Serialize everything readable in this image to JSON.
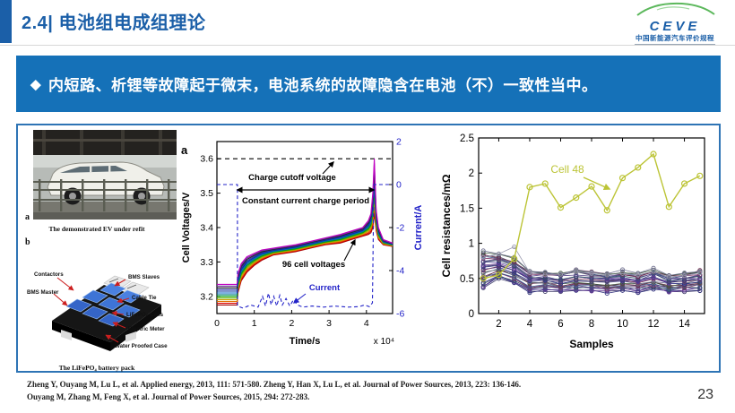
{
  "header": {
    "title": "2.4| 电池组电成组理论",
    "logo": {
      "name": "CEVE",
      "subtitle_zh": "中国新能源汽车评价规程"
    }
  },
  "banner": {
    "bullet": "◆",
    "text": "内短路、析锂等故障起于微末，电池系统的故障隐含在电池（不）一致性当中。"
  },
  "colors": {
    "accent_blue": "#1b5fa8",
    "banner_blue": "#1571b8",
    "box_border_blue": "#2e74b5",
    "current_blue": "#2323c8",
    "cell48_olive": "#bcc436",
    "arrow_red": "#cc1f1f",
    "logo_green": "#5cb85c"
  },
  "figures": {
    "ev": {
      "label": "a",
      "caption": "The demonstrated EV under refit"
    },
    "pack": {
      "label": "b",
      "caption": "The LiFePO₄ battery pack",
      "labels_left": [
        "Contactors",
        "BMS Master"
      ],
      "labels_right": [
        "BMS Slaves",
        "Cable Tie",
        "LiFePO₄ Cells",
        "Electric Meter",
        "Water Proofed Case"
      ]
    }
  },
  "chart_data": [
    {
      "id": "cell-voltages-vs-time",
      "type": "line",
      "panel_label": "a",
      "xlabel": "Time/s",
      "x_exponent": "x 10⁴",
      "ylabel_left": "Cell Voltages/V",
      "ylabel_right": "Current/A",
      "xlim": [
        0,
        4.7
      ],
      "ylim_left": [
        3.15,
        3.65
      ],
      "ylim_right": [
        -6,
        2
      ],
      "xticks": [
        0,
        1,
        2,
        3,
        4
      ],
      "yticks_left": [
        3.2,
        3.3,
        3.4,
        3.5,
        3.6
      ],
      "yticks_right": [
        2,
        0,
        -2,
        -4,
        -6
      ],
      "charge_cutoff_voltage": 3.6,
      "annotations": {
        "cutoff": "Charge cutoff voltage",
        "cc_period": "Constant current charge period",
        "cells": "96 cell voltages",
        "current": "Current"
      },
      "voltage_band": {
        "n_cells": 96,
        "n_drawn": 13,
        "x": [
          0,
          0.54,
          0.56,
          0.65,
          0.8,
          1.0,
          1.2,
          1.5,
          1.8,
          2.1,
          2.5,
          2.9,
          3.3,
          3.6,
          3.9,
          4.05,
          4.12,
          4.17,
          4.21,
          4.26,
          4.32,
          4.45,
          4.7
        ],
        "lower": [
          3.175,
          3.175,
          3.21,
          3.245,
          3.27,
          3.29,
          3.305,
          3.32,
          3.325,
          3.33,
          3.34,
          3.35,
          3.355,
          3.365,
          3.375,
          3.38,
          3.385,
          3.4,
          3.44,
          3.39,
          3.365,
          3.35,
          3.345
        ],
        "upper": [
          3.235,
          3.235,
          3.265,
          3.295,
          3.315,
          3.325,
          3.335,
          3.34,
          3.345,
          3.35,
          3.36,
          3.37,
          3.38,
          3.39,
          3.4,
          3.42,
          3.44,
          3.5,
          3.6,
          3.45,
          3.4,
          3.365,
          3.355
        ],
        "colors_bottom_to_top": [
          "#a00000",
          "#e00000",
          "#e07000",
          "#c8a000",
          "#60b000",
          "#00a000",
          "#008080",
          "#0060c0",
          "#00309c",
          "#3030a0",
          "#202020",
          "#7030a0",
          "#c000c0"
        ]
      },
      "current_series": {
        "color": "#2323c8",
        "points": [
          [
            0,
            0
          ],
          [
            0.55,
            0
          ],
          [
            0.55,
            -5.65
          ],
          [
            0.7,
            -5.75
          ],
          [
            0.9,
            -5.6
          ],
          [
            1.1,
            -5.7
          ],
          [
            1.22,
            -5.2
          ],
          [
            1.3,
            -5.65
          ],
          [
            1.38,
            -5.05
          ],
          [
            1.45,
            -5.6
          ],
          [
            1.52,
            -5.2
          ],
          [
            1.6,
            -5.65
          ],
          [
            1.68,
            -5.15
          ],
          [
            1.75,
            -5.6
          ],
          [
            1.85,
            -5.3
          ],
          [
            1.95,
            -5.65
          ],
          [
            2.05,
            -5.35
          ],
          [
            2.15,
            -5.6
          ],
          [
            2.3,
            -5.7
          ],
          [
            2.55,
            -5.65
          ],
          [
            2.85,
            -5.7
          ],
          [
            3.15,
            -5.65
          ],
          [
            3.5,
            -5.7
          ],
          [
            3.8,
            -5.68
          ],
          [
            3.95,
            -5.6
          ],
          [
            4.08,
            -5.68
          ],
          [
            4.16,
            -5.5
          ],
          [
            4.2,
            0
          ],
          [
            4.7,
            0
          ]
        ]
      }
    },
    {
      "id": "cell-resistances-vs-samples",
      "type": "line",
      "xlabel": "Samples",
      "ylabel": "Cell resistances/mΩ",
      "xlim": [
        0.7,
        15.3
      ],
      "ylim": [
        0,
        2.5
      ],
      "xticks": [
        2,
        4,
        6,
        8,
        10,
        12,
        14
      ],
      "yticks": [
        0,
        0.5,
        1,
        1.5,
        2,
        2.5
      ],
      "x": [
        1,
        2,
        3,
        4,
        5,
        6,
        7,
        8,
        9,
        10,
        11,
        12,
        13,
        14,
        15
      ],
      "annotation": "Cell 48",
      "cell48": {
        "name": "Cell 48",
        "color": "#bcc436",
        "values": [
          0.5,
          0.55,
          0.78,
          1.8,
          1.85,
          1.51,
          1.65,
          1.81,
          1.47,
          1.93,
          2.08,
          2.27,
          1.52,
          1.85,
          1.96
        ]
      },
      "outlier": {
        "color": "#9a9ab0",
        "values": [
          0.8,
          0.85,
          0.95,
          0.58,
          0.55,
          0.56,
          0.6,
          0.57,
          0.55,
          0.57,
          0.55,
          0.6,
          0.52,
          0.54,
          0.58
        ]
      },
      "other_cells_band": {
        "count": 95,
        "n_drawn": 26,
        "upper": [
          0.88,
          0.84,
          0.78,
          0.62,
          0.6,
          0.58,
          0.63,
          0.6,
          0.58,
          0.6,
          0.57,
          0.63,
          0.55,
          0.57,
          0.62
        ],
        "lower": [
          0.36,
          0.5,
          0.42,
          0.31,
          0.33,
          0.31,
          0.34,
          0.32,
          0.3,
          0.33,
          0.31,
          0.35,
          0.3,
          0.32,
          0.34
        ],
        "colors": [
          "#45426e",
          "#35357f",
          "#6a3d9a",
          "#4b3b8f",
          "#2f4f5f",
          "#5b4a8a",
          "#813a6a",
          "#3a5a8a",
          "#555570",
          "#703050",
          "#405a40",
          "#6e6e8e",
          "#30308a",
          "#804060"
        ]
      }
    }
  ],
  "footer": {
    "references": [
      "Zheng Y, Ouyang M, Lu L, et al. Applied energy, 2013, 111: 571-580. Zheng Y, Han X, Lu L, et al. Journal of Power Sources, 2013, 223: 136-146.",
      "Ouyang M, Zhang M, Feng X, et al. Journal of Power Sources, 2015, 294: 272-283."
    ],
    "page_number": "23"
  }
}
